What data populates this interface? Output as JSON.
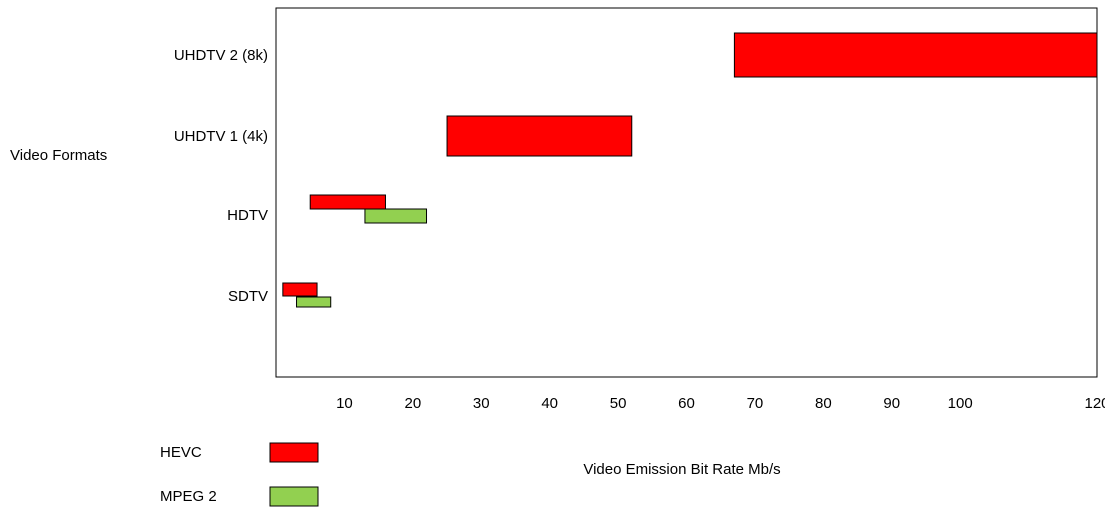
{
  "chart_data": {
    "type": "bar",
    "orientation": "horizontal",
    "title": "",
    "xlabel": "Video Emission Bit Rate Mb/s",
    "ylabel": "Video Formats",
    "xlim": [
      0,
      120
    ],
    "xticks": [
      {
        "label": "10",
        "value": 10
      },
      {
        "label": "20",
        "value": 20
      },
      {
        "label": "30",
        "value": 30
      },
      {
        "label": "40",
        "value": 40
      },
      {
        "label": "50",
        "value": 50
      },
      {
        "label": "60",
        "value": 60
      },
      {
        "label": "70",
        "value": 70
      },
      {
        "label": "80",
        "value": 80
      },
      {
        "label": "90",
        "value": 90
      },
      {
        "label": "100",
        "value": 100
      },
      {
        "label": "120",
        "value": 120
      }
    ],
    "categories": [
      "UHDTV 2 (8k)",
      "UHDTV 1 (4k)",
      "HDTV",
      "SDTV"
    ],
    "series": [
      {
        "name": "HEVC",
        "color": "#ff0000",
        "ranges": [
          {
            "category": "UHDTV 2 (8k)",
            "start": 67,
            "end": 120
          },
          {
            "category": "UHDTV 1 (4k)",
            "start": 25,
            "end": 52
          },
          {
            "category": "HDTV",
            "start": 5,
            "end": 16
          },
          {
            "category": "SDTV",
            "start": 1,
            "end": 6
          }
        ]
      },
      {
        "name": "MPEG 2",
        "color": "#92d050",
        "ranges": [
          {
            "category": "HDTV",
            "start": 13,
            "end": 22
          },
          {
            "category": "SDTV",
            "start": 3,
            "end": 8
          }
        ]
      }
    ],
    "grid": false,
    "legend_position": "bottom-left"
  }
}
